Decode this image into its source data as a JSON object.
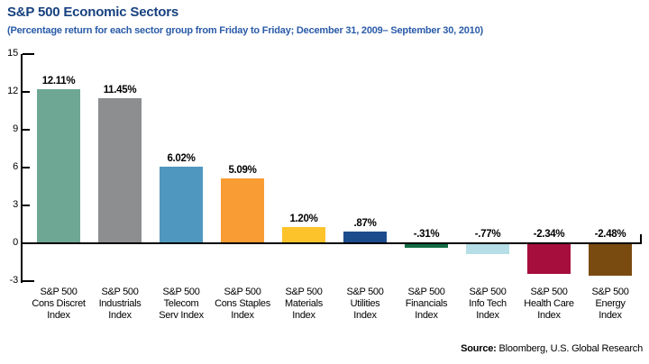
{
  "header": {
    "title": "S&P 500 Economic Sectors",
    "subtitle": "(Percentage return for each sector group from Friday to Friday; December 31, 2009– September 30, 2010)"
  },
  "footer": {
    "source_label": "Source:",
    "source_text": " Bloomberg, U.S. Global Research"
  },
  "colors": {
    "title_blue": "#17417F",
    "axis_black": "#000000"
  },
  "chart_data": {
    "type": "bar",
    "title": "S&P 500 Economic Sectors",
    "subtitle": "(Percentage return for each sector group from Friday to Friday; December 31, 2009– September 30, 2010)",
    "categories": [
      [
        "S&P 500",
        "Cons Discret",
        "Index"
      ],
      [
        "S&P 500",
        "Industrials",
        "Index"
      ],
      [
        "S&P 500",
        "Telecom",
        "Serv Index"
      ],
      [
        "S&P 500",
        "Cons Staples",
        "Index"
      ],
      [
        "S&P 500",
        "Materials",
        "Index"
      ],
      [
        "S&P 500",
        "Utilities",
        "Index"
      ],
      [
        "S&P 500",
        "Financials",
        "Index"
      ],
      [
        "S&P 500",
        "Info Tech",
        "Index"
      ],
      [
        "S&P 500",
        "Health Care",
        "Index"
      ],
      [
        "S&P 500",
        "Energy",
        "Index"
      ]
    ],
    "values": [
      12.11,
      11.45,
      6.02,
      5.09,
      1.2,
      0.87,
      -0.31,
      -0.77,
      -2.34,
      -2.48
    ],
    "value_labels": [
      "12.11%",
      "11.45%",
      "6.02%",
      "5.09%",
      "1.20%",
      ".87%",
      "-.31%",
      "-.77%",
      "-2.34%",
      "-2.48%"
    ],
    "bar_colors": [
      "#6FA795",
      "#8C8E90",
      "#4F97BE",
      "#F89C33",
      "#FCC32B",
      "#1C4C8C",
      "#116C44",
      "#B5DEE6",
      "#A60E3E",
      "#7A4B11"
    ],
    "y_ticks": [
      15,
      12,
      9,
      6,
      3,
      0,
      -3
    ],
    "ylim": [
      -3,
      15
    ],
    "ylabel": "",
    "xlabel": "",
    "grid": false,
    "legend": false,
    "source": "Source: Bloomberg, U.S. Global Research"
  }
}
